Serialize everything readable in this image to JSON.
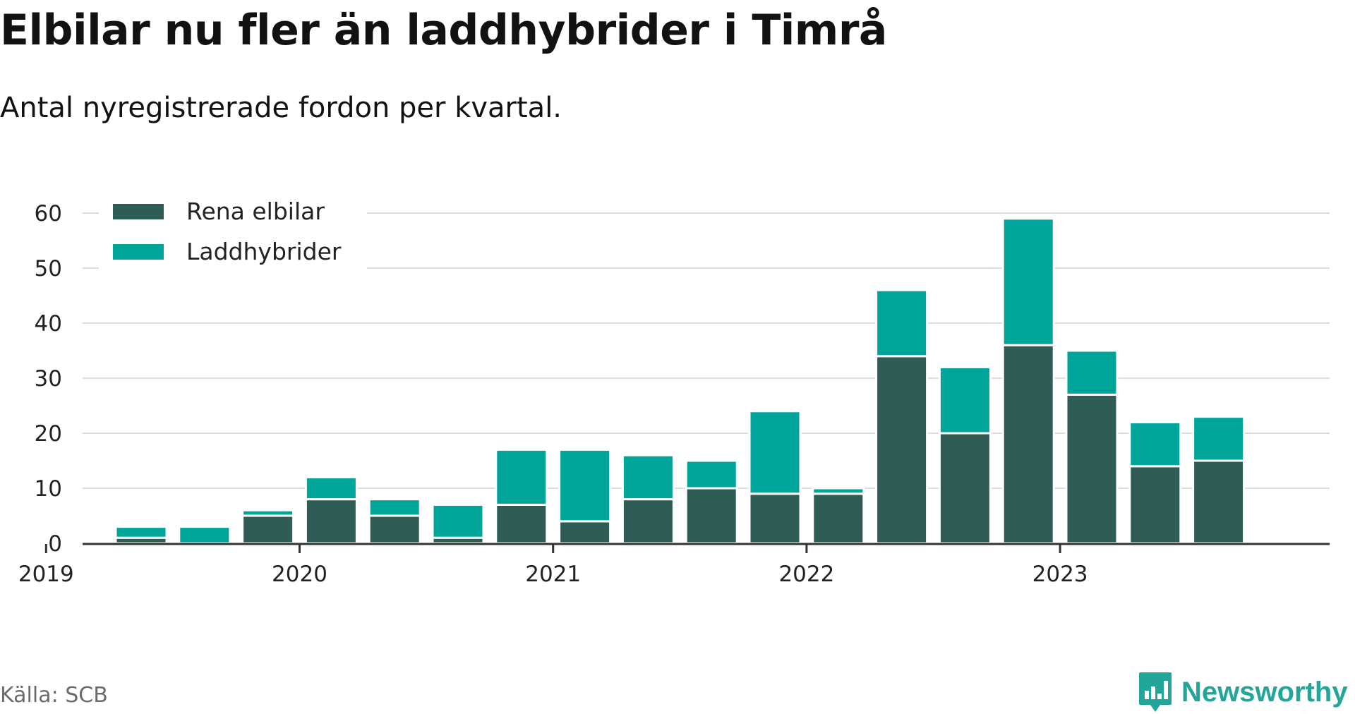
{
  "title": "Elbilar nu fler än laddhybrider i Timrå",
  "subtitle": "Antal nyregistrerade fordon per kvartal.",
  "source": "Källa: SCB",
  "brand": {
    "name": "Newsworthy",
    "icon": "newsworthy-logo-icon"
  },
  "colors": {
    "rena_elbilar": "#2f5d55",
    "laddhybrider": "#00a59a",
    "grid": "#dddddd",
    "axis": "#333333"
  },
  "chart_data": {
    "type": "bar",
    "stacked": true,
    "legend_position": "top-left",
    "categories": [
      "2019 Q2",
      "2019 Q3",
      "2019 Q4",
      "2020 Q1",
      "2020 Q2",
      "2020 Q3",
      "2020 Q4",
      "2021 Q1",
      "2021 Q2",
      "2021 Q3",
      "2021 Q4",
      "2022 Q1",
      "2022 Q2",
      "2022 Q3",
      "2022 Q4",
      "2023 Q1",
      "2023 Q2",
      "2023 Q3"
    ],
    "series": [
      {
        "name": "Rena elbilar",
        "values": [
          1,
          0,
          5,
          8,
          5,
          1,
          7,
          4,
          8,
          10,
          9,
          9,
          34,
          20,
          36,
          27,
          14,
          15
        ]
      },
      {
        "name": "Laddhybrider",
        "values": [
          2,
          3,
          1,
          4,
          3,
          6,
          10,
          13,
          8,
          5,
          15,
          1,
          12,
          12,
          23,
          8,
          8,
          8
        ]
      }
    ],
    "x_ticks": [
      "2019",
      "2020",
      "2021",
      "2022",
      "2023"
    ],
    "y_ticks": [
      "0",
      "10",
      "20",
      "30",
      "40",
      "50",
      "60"
    ],
    "ylim": [
      0,
      60
    ],
    "grid": true,
    "xlabel": "",
    "ylabel": ""
  }
}
